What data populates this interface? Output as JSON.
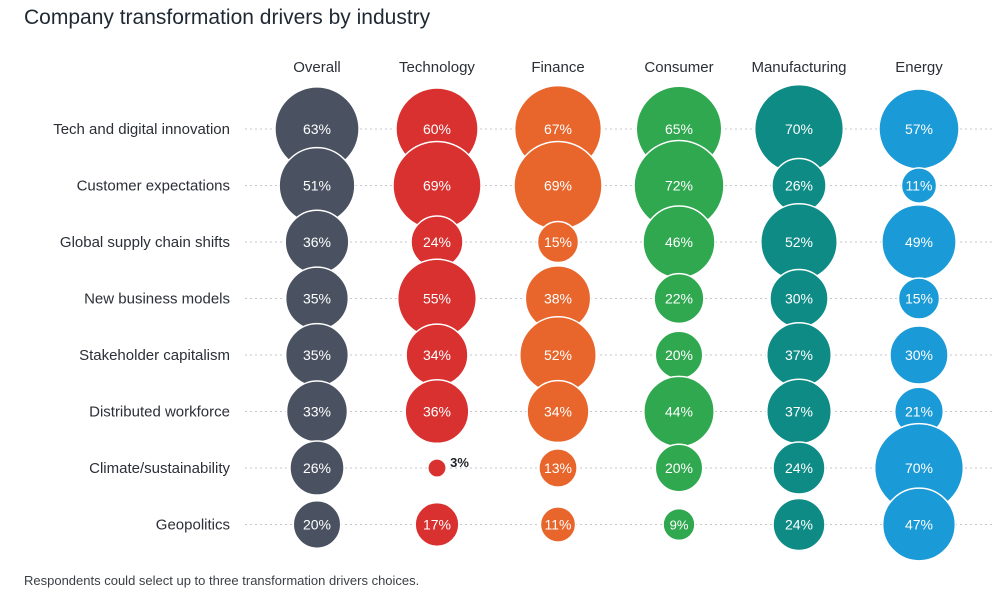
{
  "title": "Company transformation drivers by industry",
  "footnote": "Respondents could select up to three transformation drivers choices.",
  "chart_data": {
    "type": "bubble_matrix",
    "columns": [
      {
        "name": "Overall",
        "color": "#4a5160"
      },
      {
        "name": "Technology",
        "color": "#d8312f"
      },
      {
        "name": "Finance",
        "color": "#e8662c"
      },
      {
        "name": "Consumer",
        "color": "#2fa84f"
      },
      {
        "name": "Manufacturing",
        "color": "#0f8b86"
      },
      {
        "name": "Energy",
        "color": "#1a9ad6"
      }
    ],
    "rows": [
      {
        "label": "Tech and digital innovation",
        "values": [
          63,
          60,
          67,
          65,
          70,
          57
        ]
      },
      {
        "label": "Customer expectations",
        "values": [
          51,
          69,
          69,
          72,
          26,
          11
        ]
      },
      {
        "label": "Global supply chain shifts",
        "values": [
          36,
          24,
          15,
          46,
          52,
          49
        ]
      },
      {
        "label": "New business models",
        "values": [
          35,
          55,
          38,
          22,
          30,
          15
        ]
      },
      {
        "label": "Stakeholder capitalism",
        "values": [
          35,
          34,
          52,
          20,
          37,
          30
        ]
      },
      {
        "label": "Distributed workforce",
        "values": [
          33,
          36,
          34,
          44,
          37,
          21
        ]
      },
      {
        "label": "Climate/sustainability",
        "values": [
          26,
          3,
          13,
          20,
          24,
          70
        ]
      },
      {
        "label": "Geopolitics",
        "values": [
          20,
          17,
          11,
          9,
          24,
          47
        ]
      }
    ],
    "value_format": "{v}%"
  }
}
